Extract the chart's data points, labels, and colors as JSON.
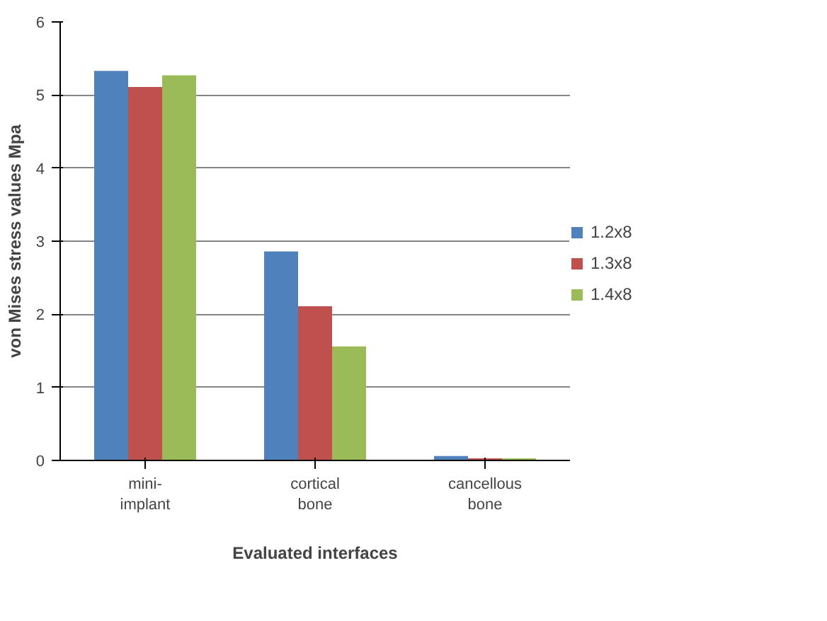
{
  "chart_data": {
    "type": "bar",
    "xlabel": "Evaluated interfaces",
    "ylabel": "von Mises stress values Mpa",
    "categories": [
      "mini-\nimplant",
      "cortical\nbone",
      "cancellous\nbone"
    ],
    "series": [
      {
        "name": "1.2x8",
        "color": "#4f81bd",
        "values": [
          5.33,
          2.86,
          0.06
        ]
      },
      {
        "name": "1.3x8",
        "color": "#c0504d",
        "values": [
          5.11,
          2.11,
          0.03
        ]
      },
      {
        "name": "1.4x8",
        "color": "#9bbb59",
        "values": [
          5.27,
          1.56,
          0.03
        ]
      }
    ],
    "ylim": [
      0,
      6
    ],
    "yticks": [
      0,
      1,
      2,
      3,
      4,
      5,
      6
    ],
    "grid": "y",
    "legend": "right"
  }
}
